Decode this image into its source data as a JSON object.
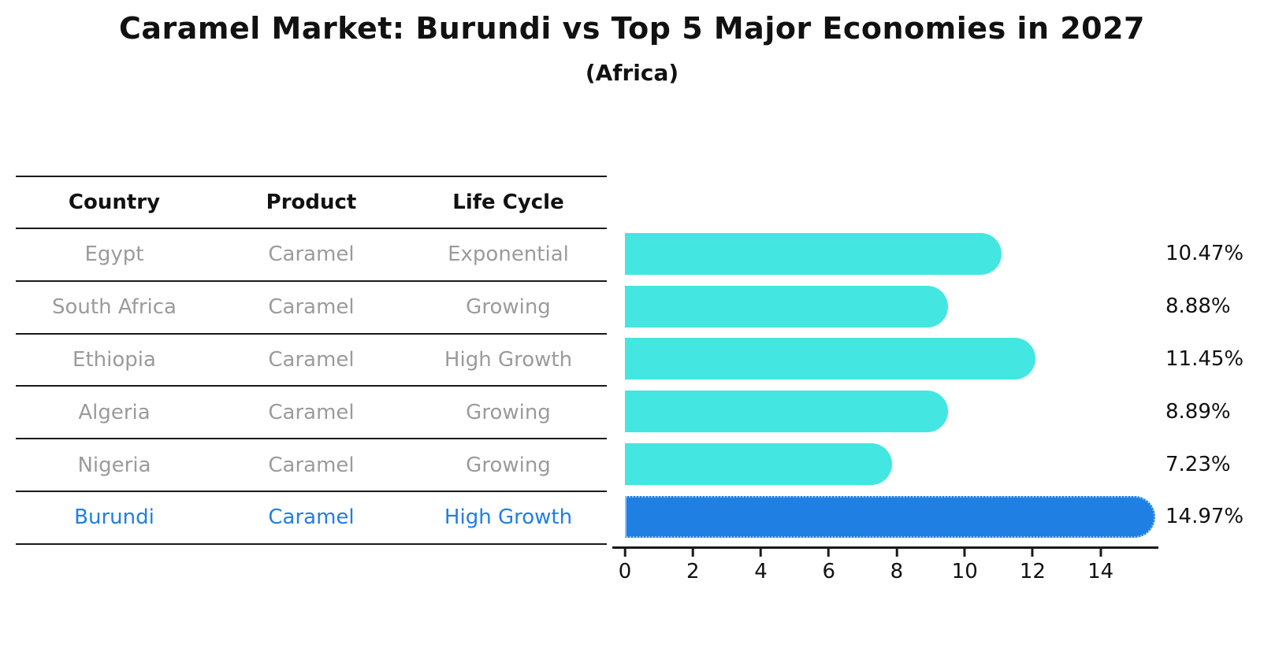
{
  "title": "Caramel Market: Burundi vs Top 5 Major Economies in 2027",
  "subtitle": "(Africa)",
  "table": {
    "headers": [
      "Country",
      "Product",
      "Life Cycle"
    ],
    "rows": [
      {
        "country": "Egypt",
        "product": "Caramel",
        "life_cycle": "Exponential",
        "highlight": false
      },
      {
        "country": "South Africa",
        "product": "Caramel",
        "life_cycle": "Growing",
        "highlight": false
      },
      {
        "country": "Ethiopia",
        "product": "Caramel",
        "life_cycle": "High Growth",
        "highlight": false
      },
      {
        "country": "Algeria",
        "product": "Caramel",
        "life_cycle": "Growing",
        "highlight": false
      },
      {
        "country": "Nigeria",
        "product": "Caramel",
        "life_cycle": "Growing",
        "highlight": false
      },
      {
        "country": "Burundi",
        "product": "Caramel",
        "life_cycle": "High Growth",
        "highlight": true
      }
    ]
  },
  "chart_data": {
    "type": "bar",
    "orientation": "horizontal",
    "title": "Caramel Market: Burundi vs Top 5 Major Economies in 2027",
    "subtitle": "(Africa)",
    "categories": [
      "Egypt",
      "South Africa",
      "Ethiopia",
      "Algeria",
      "Nigeria",
      "Burundi"
    ],
    "values": [
      10.47,
      8.88,
      11.45,
      8.89,
      7.23,
      14.97
    ],
    "value_labels": [
      "10.47%",
      "8.88%",
      "11.45%",
      "8.89%",
      "7.23%",
      "14.97%"
    ],
    "xticks": [
      0,
      2,
      4,
      6,
      8,
      10,
      12,
      14
    ],
    "xtick_labels": [
      "0",
      "2",
      "4",
      "6",
      "8",
      "10",
      "12",
      "14"
    ],
    "xlim": [
      0,
      15.7
    ],
    "grid": false,
    "legend": null,
    "bar_color": "#43e6e0",
    "highlight_bar_color": "#1f7fe3",
    "highlight_border_color": "#8cc4f6",
    "highlight_category": "Burundi"
  },
  "colors": {
    "table_text": "#9b9b9b",
    "heading_text": "#111111",
    "axis": "#1a1a1a"
  }
}
